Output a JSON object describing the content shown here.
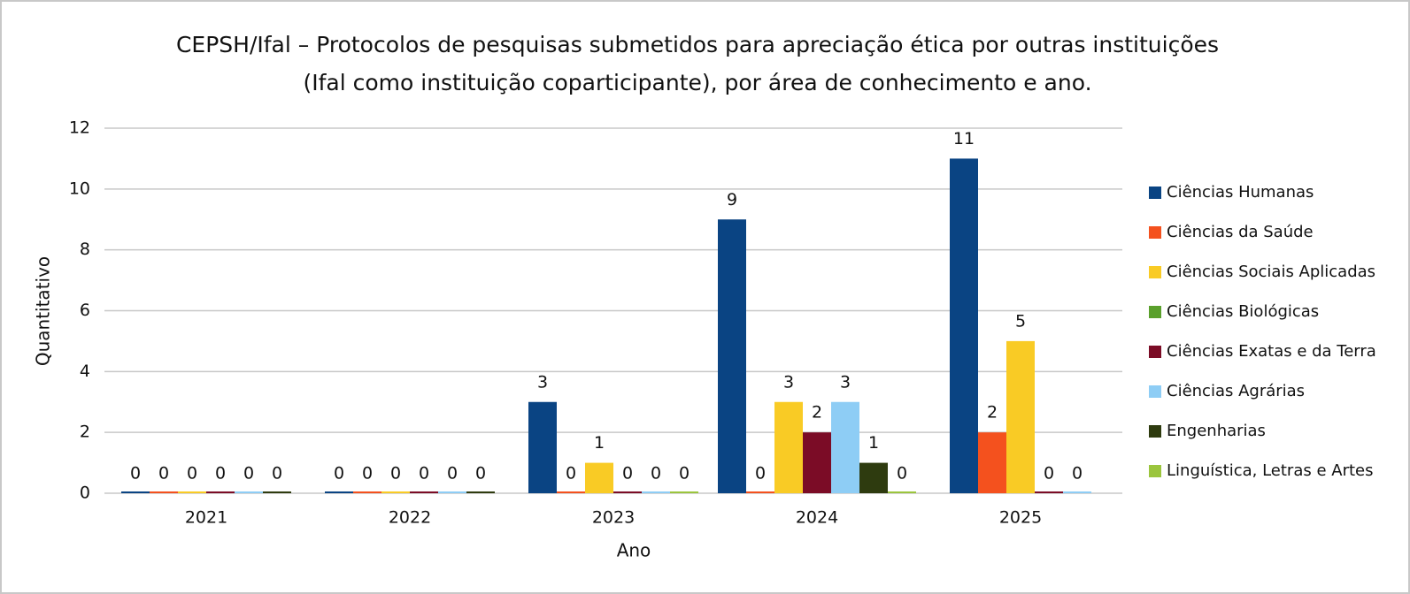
{
  "chart_data": {
    "type": "bar",
    "title": [
      "CEPSH/Ifal – Protocolos de pesquisas submetidos para apreciação ética por outras instituições",
      "(Ifal como instituição coparticipante), por área de conhecimento e ano."
    ],
    "x_label": "Ano",
    "y_label": "Quantitativo",
    "categories": [
      "2021",
      "2022",
      "2023",
      "2024",
      "2025"
    ],
    "series": [
      {
        "name": "Ciências Humanas",
        "color": "#0a4483",
        "values": [
          0,
          0,
          3,
          9,
          11
        ]
      },
      {
        "name": "Ciências da Saúde",
        "color": "#f4511e",
        "values": [
          0,
          0,
          0,
          0,
          2
        ]
      },
      {
        "name": "Ciências Sociais Aplicadas",
        "color": "#f9cb25",
        "values": [
          0,
          0,
          1,
          3,
          5
        ]
      },
      {
        "name": "Ciências Biológicas",
        "color": "#5aa02c",
        "values": [
          null,
          null,
          null,
          null,
          null
        ]
      },
      {
        "name": "Ciências Exatas e da Terra",
        "color": "#7b0c26",
        "values": [
          0,
          0,
          0,
          2,
          0
        ]
      },
      {
        "name": "Ciências Agrárias",
        "color": "#8ecdf5",
        "values": [
          0,
          0,
          0,
          3,
          0
        ]
      },
      {
        "name": "Engenharias",
        "color": "#2e3b0f",
        "values": [
          0,
          0,
          null,
          1,
          null
        ]
      },
      {
        "name": "Linguística, Letras e Artes",
        "color": "#9bc53d",
        "values": [
          null,
          null,
          0,
          0,
          null
        ]
      }
    ],
    "ylim": [
      0,
      12
    ],
    "yticks": [
      0,
      2,
      4,
      6,
      8,
      10,
      12
    ],
    "grid": true,
    "legend": "right"
  }
}
